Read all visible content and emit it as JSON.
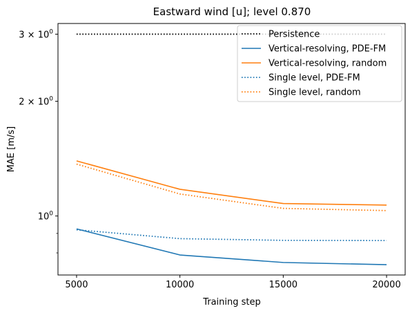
{
  "chart_data": {
    "type": "line",
    "title": "Eastward wind [u]; level 0.870",
    "xlabel": "Training step",
    "ylabel": "MAE [m/s]",
    "y_scale": "log",
    "x": [
      5000,
      10000,
      15000,
      20000
    ],
    "xlim": [
      4100,
      20900
    ],
    "ylim": [
      0.7,
      3.2
    ],
    "x_ticks": [
      5000,
      10000,
      15000,
      20000
    ],
    "x_tick_labels": [
      "5000",
      "10000",
      "15000",
      "20000"
    ],
    "y_major_ticks": [
      1,
      2,
      3
    ],
    "y_major_labels": [
      {
        "mant": "10",
        "exp": "0",
        "prefix": ""
      },
      {
        "mant": "10",
        "exp": "0",
        "prefix": "2 × "
      },
      {
        "mant": "10",
        "exp": "0",
        "prefix": "3 × "
      }
    ],
    "y_minor_ticks": [
      0.8,
      0.9
    ],
    "grid": false,
    "legend_position": "top-right",
    "series": [
      {
        "name": "Persistence",
        "values": [
          3.0,
          3.0,
          3.0,
          3.0
        ],
        "color": "#000000",
        "style": "dotted"
      },
      {
        "name": "Vertical-resolving, PDE-FM",
        "values": [
          0.925,
          0.79,
          0.755,
          0.745
        ],
        "color": "#1f77b4",
        "style": "solid"
      },
      {
        "name": "Vertical-resolving, random",
        "values": [
          1.395,
          1.175,
          1.078,
          1.068
        ],
        "color": "#ff7f0e",
        "style": "solid"
      },
      {
        "name": "Single level, PDE-FM",
        "values": [
          0.92,
          0.872,
          0.863,
          0.862
        ],
        "color": "#1f77b4",
        "style": "dotted"
      },
      {
        "name": "Single level, random",
        "values": [
          1.368,
          1.142,
          1.047,
          1.033
        ],
        "color": "#ff7f0e",
        "style": "dotted"
      }
    ]
  }
}
